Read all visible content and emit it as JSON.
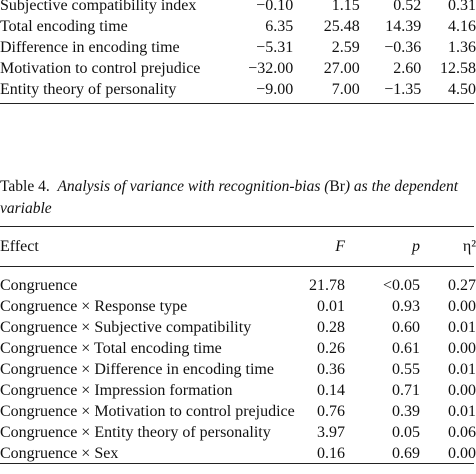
{
  "table3": {
    "rows": [
      {
        "label": "Subjective compatibility index",
        "c1": "−0.10",
        "c2": "1.15",
        "c3": "0.52",
        "c4": "0.31"
      },
      {
        "label": "Total encoding time",
        "c1": "6.35",
        "c2": "25.48",
        "c3": "14.39",
        "c4": "4.16"
      },
      {
        "label": "Difference in encoding time",
        "c1": "−5.31",
        "c2": "2.59",
        "c3": "−0.36",
        "c4": "1.36"
      },
      {
        "label": "Motivation to control prejudice",
        "c1": "−32.00",
        "c2": "27.00",
        "c3": "2.60",
        "c4": "12.58"
      },
      {
        "label": "Entity theory of personality",
        "c1": "−9.00",
        "c2": "7.00",
        "c3": "−1.35",
        "c4": "4.50"
      }
    ]
  },
  "table4": {
    "label": "Table 4.",
    "title_a": "Analysis of variance with recognition-bias (",
    "title_br": "Br",
    "title_b": ") as the dependent",
    "title_line2": "variable",
    "headers": {
      "effect": "Effect",
      "f": "F",
      "p": "p",
      "eta": "η²"
    },
    "rows": [
      {
        "effect": "Congruence",
        "f": "21.78",
        "p": "<0.05",
        "eta": "0.27"
      },
      {
        "effect": "Congruence × Response type",
        "f": "0.01",
        "p": "0.93",
        "eta": "0.00"
      },
      {
        "effect": "Congruence × Subjective compatibility",
        "f": "0.28",
        "p": "0.60",
        "eta": "0.01"
      },
      {
        "effect": "Congruence × Total encoding time",
        "f": "0.26",
        "p": "0.61",
        "eta": "0.00"
      },
      {
        "effect": "Congruence × Difference in encoding time",
        "f": "0.36",
        "p": "0.55",
        "eta": "0.01"
      },
      {
        "effect": "Congruence × Impression formation",
        "f": "0.14",
        "p": "0.71",
        "eta": "0.00"
      },
      {
        "effect": "Congruence × Motivation to control prejudice",
        "f": "0.76",
        "p": "0.39",
        "eta": "0.01"
      },
      {
        "effect": "Congruence × Entity theory of personality",
        "f": "3.97",
        "p": "0.05",
        "eta": "0.06"
      },
      {
        "effect": "Congruence × Sex",
        "f": "0.16",
        "p": "0.69",
        "eta": "0.00"
      }
    ]
  }
}
